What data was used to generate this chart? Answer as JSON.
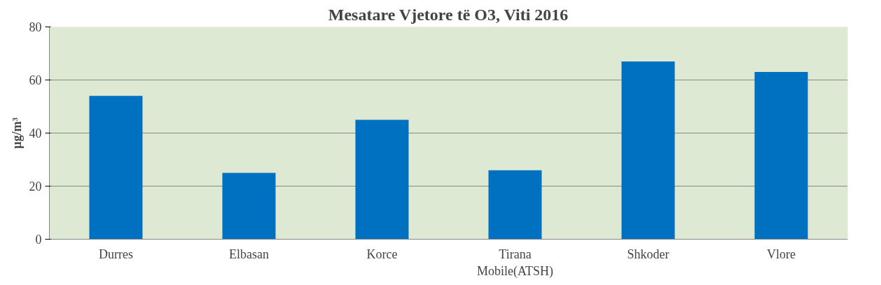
{
  "chart_data": {
    "type": "bar",
    "title": "Mesatare Vjetore të O3, Viti 2016",
    "ylabel": "µg/m³",
    "categories": [
      "Durres",
      "Elbasan",
      "Korce",
      "Tirana\nMobile(ATSH)",
      "Shkoder",
      "Vlore"
    ],
    "values": [
      54,
      25,
      45,
      26,
      67,
      63
    ],
    "color": "#0070c0",
    "ylim": [
      0,
      80
    ],
    "yticks": [
      0,
      20,
      40,
      60,
      80
    ],
    "grid": "y"
  }
}
